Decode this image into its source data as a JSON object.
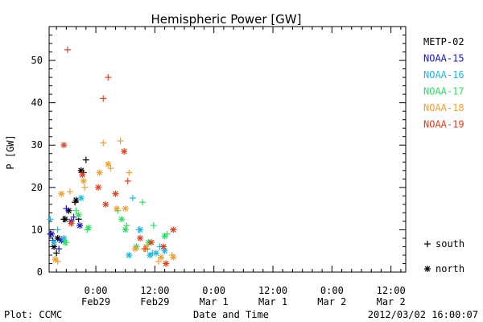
{
  "chart_data": {
    "type": "scatter",
    "title": "Hemispheric Power [GW]",
    "ylabel": "P [GW]",
    "xlabel": "Date and Time",
    "xlim": [
      "2012-02-28T14:30",
      "2012-03-02T15:00"
    ],
    "ylim": [
      0,
      58
    ],
    "yticks": [
      0,
      10,
      20,
      30,
      40,
      50
    ],
    "xticks": [
      {
        "time": "2012-02-29T00:00",
        "label1": "0:00",
        "label2": "Feb29"
      },
      {
        "time": "2012-02-29T12:00",
        "label1": "12:00",
        "label2": "Feb29"
      },
      {
        "time": "2012-03-01T00:00",
        "label1": "0:00",
        "label2": "Mar 1"
      },
      {
        "time": "2012-03-01T12:00",
        "label1": "12:00",
        "label2": "Mar 1"
      },
      {
        "time": "2012-03-02T00:00",
        "label1": "0:00",
        "label2": "Mar 2"
      },
      {
        "time": "2012-03-02T12:00",
        "label1": "12:00",
        "label2": "Mar 2"
      }
    ],
    "marker_legend": [
      {
        "marker": "+",
        "label": "south"
      },
      {
        "marker": "*",
        "label": "north"
      }
    ],
    "series": [
      {
        "name": "METP-02",
        "color": "#000000",
        "south": [
          [
            "2012-02-28T14:45",
            9
          ],
          [
            "2012-02-28T17:30",
            12.5
          ],
          [
            "2012-02-28T19:45",
            16.5
          ],
          [
            "2012-02-28T20:30",
            12.5
          ],
          [
            "2012-02-28T21:30",
            23.5
          ],
          [
            "2012-02-28T22:00",
            26.5
          ],
          [
            "2012-02-28T16:00",
            4.5
          ]
        ],
        "north": [
          [
            "2012-02-28T15:30",
            6
          ],
          [
            "2012-02-28T16:15",
            8
          ],
          [
            "2012-02-28T18:30",
            14.5
          ],
          [
            "2012-02-28T20:00",
            17
          ],
          [
            "2012-02-28T21:00",
            24
          ],
          [
            "2012-02-28T17:45",
            12.5
          ]
        ]
      },
      {
        "name": "NOAA-15",
        "color": "#1a1acc",
        "south": [
          [
            "2012-02-28T15:15",
            7.5
          ],
          [
            "2012-02-28T16:30",
            5.5
          ],
          [
            "2012-02-28T18:00",
            15
          ],
          [
            "2012-02-28T19:30",
            13
          ]
        ],
        "north": [
          [
            "2012-02-28T15:00",
            9
          ],
          [
            "2012-02-28T17:00",
            7.5
          ],
          [
            "2012-02-28T19:00",
            12
          ],
          [
            "2012-02-28T20:45",
            11
          ]
        ]
      },
      {
        "name": "NOAA-16",
        "color": "#20b8e0",
        "south": [
          [
            "2012-02-28T14:45",
            12.5
          ],
          [
            "2012-02-28T16:15",
            10
          ],
          [
            "2012-02-29T07:30",
            17.5
          ],
          [
            "2012-02-29T08:45",
            10
          ],
          [
            "2012-02-29T10:30",
            5.5
          ],
          [
            "2012-02-29T11:30",
            4.5
          ],
          [
            "2012-02-29T13:00",
            6
          ]
        ],
        "north": [
          [
            "2012-02-28T15:30",
            7
          ],
          [
            "2012-02-28T17:30",
            8
          ],
          [
            "2012-02-28T21:00",
            17.5
          ],
          [
            "2012-02-29T06:45",
            4
          ],
          [
            "2012-02-29T09:00",
            10
          ],
          [
            "2012-02-29T11:00",
            4
          ],
          [
            "2012-02-29T12:15",
            4.5
          ],
          [
            "2012-02-29T14:00",
            5
          ]
        ]
      },
      {
        "name": "NOAA-17",
        "color": "#33dd66",
        "south": [
          [
            "2012-02-28T18:00",
            7
          ],
          [
            "2012-02-28T20:00",
            14.5
          ],
          [
            "2012-02-28T22:15",
            10
          ],
          [
            "2012-02-29T04:30",
            14.5
          ],
          [
            "2012-02-29T06:15",
            11
          ],
          [
            "2012-02-29T09:30",
            16.5
          ],
          [
            "2012-02-29T11:45",
            11
          ],
          [
            "2012-02-29T14:30",
            9
          ]
        ],
        "north": [
          [
            "2012-02-28T17:45",
            7
          ],
          [
            "2012-02-28T20:30",
            13.5
          ],
          [
            "2012-02-28T22:30",
            10.5
          ],
          [
            "2012-02-29T05:15",
            12.5
          ],
          [
            "2012-02-29T06:00",
            10
          ],
          [
            "2012-02-29T08:15",
            6
          ],
          [
            "2012-02-29T10:45",
            7
          ],
          [
            "2012-02-29T14:00",
            8.5
          ]
        ]
      },
      {
        "name": "NOAA-18",
        "color": "#f0a030",
        "south": [
          [
            "2012-02-28T16:15",
            2.5
          ],
          [
            "2012-02-28T18:45",
            19
          ],
          [
            "2012-02-28T21:45",
            20
          ],
          [
            "2012-02-29T01:30",
            30.5
          ],
          [
            "2012-02-29T03:00",
            24.5
          ],
          [
            "2012-02-29T05:00",
            31
          ],
          [
            "2012-02-29T06:45",
            23.5
          ],
          [
            "2012-02-29T09:45",
            5.5
          ],
          [
            "2012-02-29T12:45",
            2.5
          ],
          [
            "2012-02-29T15:30",
            4
          ]
        ],
        "north": [
          [
            "2012-02-28T15:45",
            3
          ],
          [
            "2012-02-28T17:00",
            18.5
          ],
          [
            "2012-02-28T21:30",
            21.5
          ],
          [
            "2012-02-29T00:45",
            23.5
          ],
          [
            "2012-02-29T02:30",
            25.5
          ],
          [
            "2012-02-29T04:15",
            15
          ],
          [
            "2012-02-29T06:00",
            15
          ],
          [
            "2012-02-29T08:00",
            5.5
          ],
          [
            "2012-02-29T10:15",
            6
          ],
          [
            "2012-02-29T13:15",
            3.5
          ],
          [
            "2012-02-29T15:45",
            3.5
          ]
        ]
      },
      {
        "name": "NOAA-19",
        "color": "#e04020",
        "south": [
          [
            "2012-02-28T18:15",
            52.5
          ],
          [
            "2012-02-29T01:30",
            41
          ],
          [
            "2012-02-29T02:30",
            46
          ],
          [
            "2012-02-29T06:30",
            21.5
          ],
          [
            "2012-02-29T10:00",
            5.5
          ]
        ],
        "north": [
          [
            "2012-02-28T17:30",
            30
          ],
          [
            "2012-02-28T19:00",
            11.5
          ],
          [
            "2012-02-28T21:15",
            23
          ],
          [
            "2012-02-29T00:30",
            20
          ],
          [
            "2012-02-29T02:00",
            16
          ],
          [
            "2012-02-29T04:00",
            18.5
          ],
          [
            "2012-02-29T05:45",
            28.5
          ],
          [
            "2012-02-29T09:00",
            8
          ],
          [
            "2012-02-29T11:15",
            7
          ],
          [
            "2012-02-29T13:45",
            6
          ],
          [
            "2012-02-29T14:15",
            2
          ],
          [
            "2012-02-29T15:45",
            10
          ]
        ]
      }
    ]
  },
  "footer": {
    "plot_credit": "Plot: CCMC",
    "xlabel": "Date and Time",
    "timestamp": "2012/03/02 16:00:07"
  }
}
